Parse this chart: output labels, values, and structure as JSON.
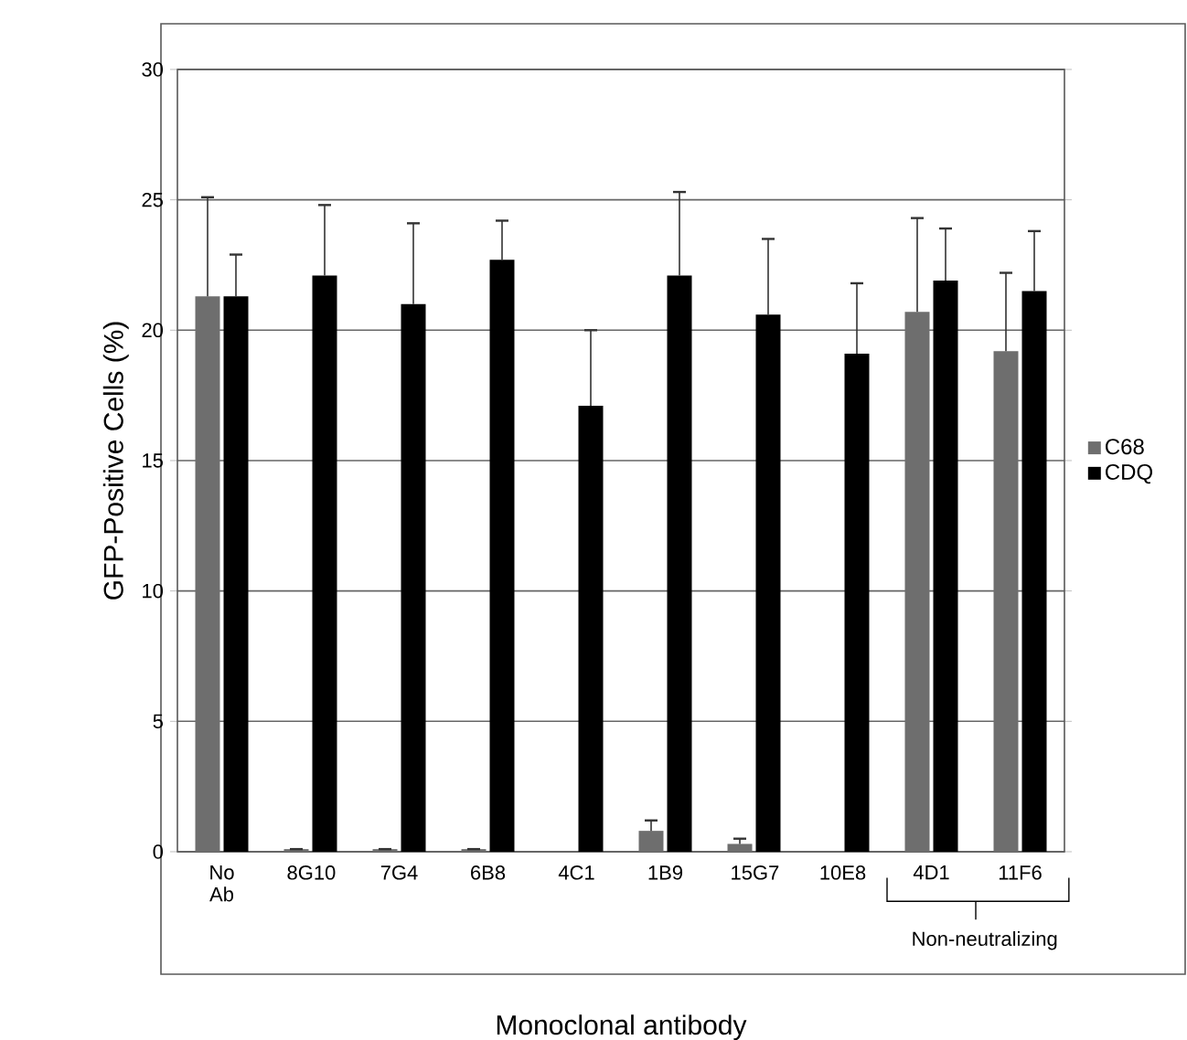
{
  "chart_data": {
    "type": "bar",
    "xlabel": "Monoclonal antibody",
    "ylabel": "GFP-Positive Cells (%)",
    "categories": [
      "No Ab",
      "8G10",
      "7G4",
      "6B8",
      "4C1",
      "1B9",
      "15G7",
      "10E8",
      "4D1",
      "11F6"
    ],
    "series": [
      {
        "name": "C68",
        "color": "#6e6e6e",
        "values": [
          21.3,
          0.1,
          0.1,
          0.1,
          null,
          0.8,
          0.3,
          null,
          20.7,
          19.2
        ],
        "errors": [
          [
            21.3,
            25.1
          ],
          null,
          null,
          null,
          null,
          [
            0.8,
            1.2
          ],
          [
            0.3,
            0.5
          ],
          null,
          [
            20.7,
            24.3
          ],
          [
            19.2,
            22.2
          ]
        ]
      },
      {
        "name": "CDQ",
        "color": "#000000",
        "values": [
          21.3,
          22.1,
          21.0,
          22.7,
          17.1,
          22.1,
          20.6,
          19.1,
          21.9,
          21.5
        ],
        "errors": [
          [
            21.3,
            22.9
          ],
          [
            22.1,
            24.8
          ],
          [
            21.0,
            24.1
          ],
          [
            22.7,
            24.2
          ],
          [
            17.1,
            20.0
          ],
          [
            22.1,
            25.3
          ],
          [
            20.6,
            23.5
          ],
          [
            19.1,
            21.8
          ],
          [
            21.9,
            23.9
          ],
          [
            21.5,
            23.8
          ]
        ]
      }
    ],
    "ylim": [
      0,
      30
    ],
    "yticks": [
      0,
      5,
      10,
      15,
      20,
      25,
      30
    ],
    "grid": "y",
    "legend": "right",
    "annotations": [
      "Non-neutralizing"
    ]
  }
}
